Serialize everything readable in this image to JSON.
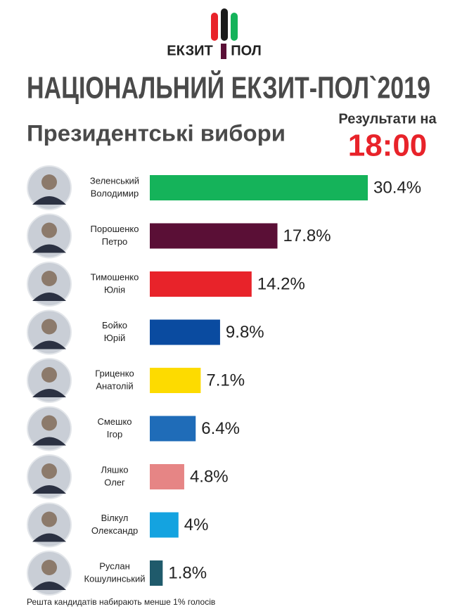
{
  "logo": {
    "left": "ЕКЗИТ",
    "right": "ПОЛ"
  },
  "chart_data": {
    "type": "bar",
    "title": "НАЦІОНАЛЬНИЙ ЕКЗИТ-ПОЛ`2019",
    "subtitle": "Президентські вибори",
    "results_label": "Результати на",
    "results_time": "18:00",
    "footnote": "Решта кандидатів набирають менше 1% голосів",
    "categories": [
      [
        "Зеленський",
        "Володимир"
      ],
      [
        "Порошенко",
        "Петро"
      ],
      [
        "Тимошенко",
        "Юлія"
      ],
      [
        "Бойко",
        "Юрій"
      ],
      [
        "Гриценко",
        "Анатолій"
      ],
      [
        "Смешко",
        "Ігор"
      ],
      [
        "Ляшко",
        "Олег"
      ],
      [
        "Вілкул",
        "Олександр"
      ],
      [
        "Руслан",
        "Кошулинський"
      ]
    ],
    "values": [
      30.4,
      17.8,
      14.2,
      9.8,
      7.1,
      6.4,
      4.8,
      4,
      1.8
    ],
    "value_labels": [
      "30.4%",
      "17.8%",
      "14.2%",
      "9.8%",
      "7.1%",
      "6.4%",
      "4.8%",
      "4%",
      "1.8%"
    ],
    "colors": [
      "#15b35a",
      "#5a0f36",
      "#e8232a",
      "#0a4ba0",
      "#fddb00",
      "#1f6cb8",
      "#e68585",
      "#14a3e0",
      "#1f5a6b"
    ]
  }
}
